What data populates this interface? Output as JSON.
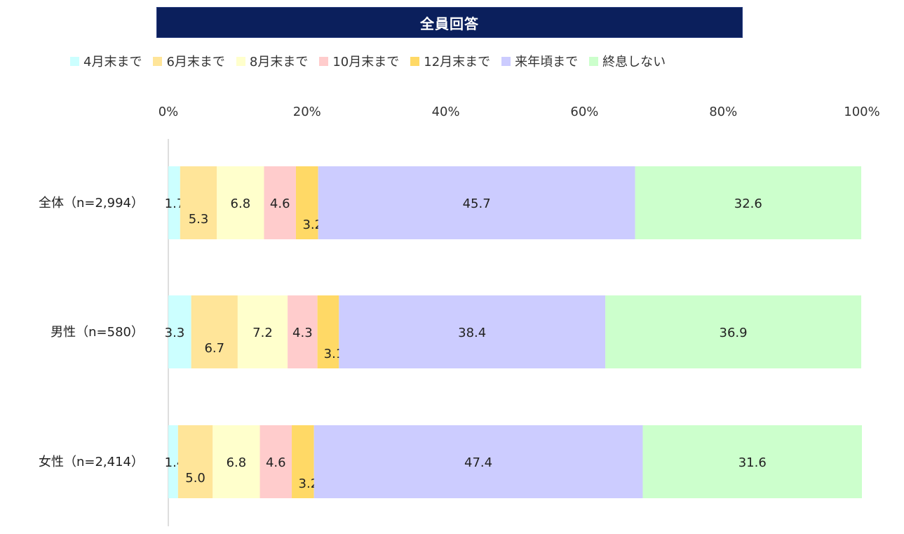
{
  "chart_data": {
    "type": "bar",
    "orientation": "horizontal",
    "stacked": true,
    "percent": true,
    "title": "全員回答",
    "categories": [
      "全体（n=2,994）",
      "男性（n=580）",
      "女性（n=2,414）"
    ],
    "series": [
      {
        "name": "4月末まで",
        "color": "#ccffff",
        "values": [
          1.7,
          3.3,
          1.4
        ]
      },
      {
        "name": "6月末まで",
        "color": "#ffe599",
        "values": [
          5.3,
          6.7,
          5.0
        ]
      },
      {
        "name": "8月末まで",
        "color": "#ffffcc",
        "values": [
          6.8,
          7.2,
          6.8
        ]
      },
      {
        "name": "10月末まで",
        "color": "#ffcccc",
        "values": [
          4.6,
          4.3,
          4.6
        ]
      },
      {
        "name": "12月末まで",
        "color": "#ffd966",
        "values": [
          3.2,
          3.1,
          3.2
        ]
      },
      {
        "name": "来年頃まで",
        "color": "#ccccff",
        "values": [
          45.7,
          38.4,
          47.4
        ]
      },
      {
        "name": "終息しない",
        "color": "#ccffcc",
        "values": [
          32.6,
          36.9,
          31.6
        ]
      }
    ],
    "xlim": [
      0,
      100
    ],
    "xticks": [
      "0%",
      "20%",
      "40%",
      "60%",
      "80%",
      "100%"
    ],
    "xtick_values": [
      0,
      20,
      40,
      60,
      80,
      100
    ],
    "legend_position": "top",
    "grid": false,
    "title_background": "#0b1f5c",
    "title_color": "#ffffff"
  }
}
